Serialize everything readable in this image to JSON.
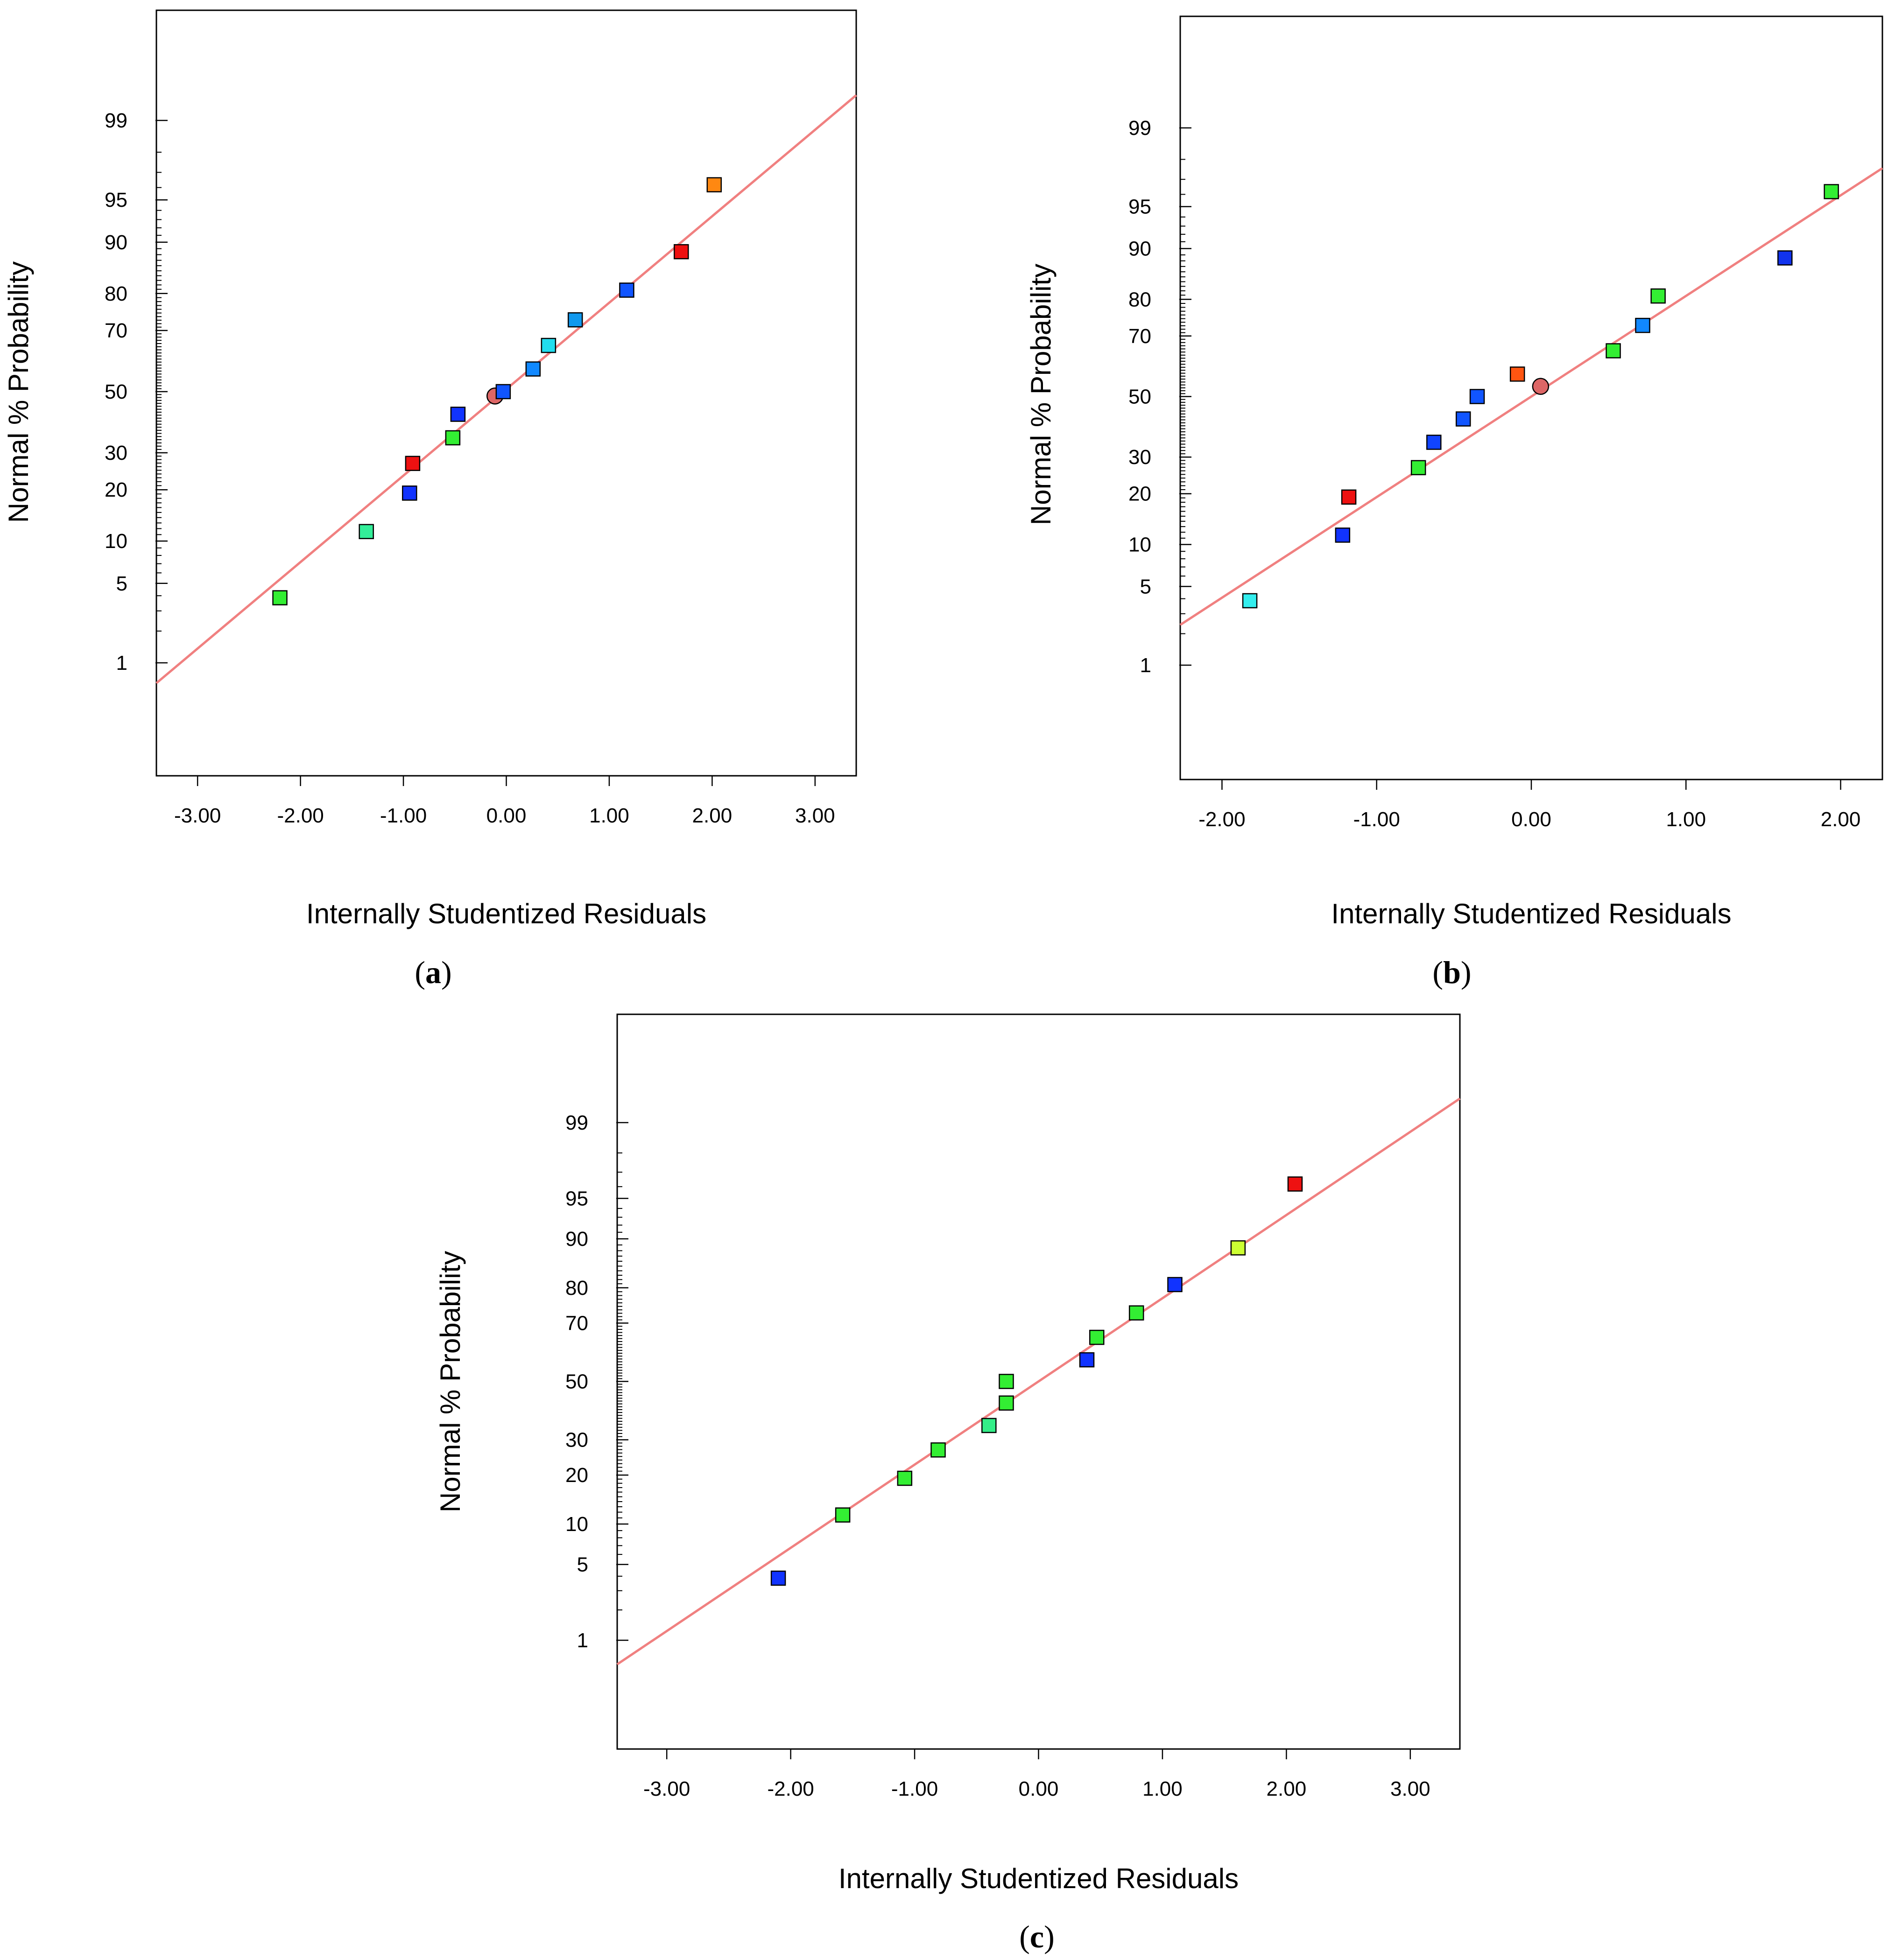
{
  "chart_data": [
    {
      "type": "scatter",
      "panel": "a",
      "caption": "a",
      "xlabel": "Internally Studentized Residuals",
      "ylabel": "Normal % Probability",
      "xlim": [
        -3.4,
        3.4
      ],
      "x_ticks": [
        -3,
        -2,
        -1,
        0,
        1,
        2,
        3
      ],
      "x_tick_labels": [
        "-3.00",
        "-2.00",
        "-1.00",
        "0.00",
        "1.00",
        "2.00",
        "3.00"
      ],
      "y_ticks": [
        1,
        5,
        10,
        20,
        30,
        50,
        70,
        80,
        90,
        95,
        99
      ],
      "y_tick_labels": [
        "1",
        "5",
        "10",
        "20",
        "30",
        "50",
        "70",
        "80",
        "90",
        "95",
        "99"
      ],
      "fit_line": {
        "x0": -3.4,
        "y0": 0.62,
        "x1": 3.4,
        "y1": 99.45
      },
      "points": [
        {
          "x": -2.2,
          "y": 3.85,
          "color": "#33ee33",
          "shape": "square"
        },
        {
          "x": -1.36,
          "y": 11.5,
          "color": "#33ee99",
          "shape": "square"
        },
        {
          "x": -0.94,
          "y": 19.2,
          "color": "#1133ff",
          "shape": "square"
        },
        {
          "x": -0.91,
          "y": 26.9,
          "color": "#ee1111",
          "shape": "square"
        },
        {
          "x": -0.52,
          "y": 34.6,
          "color": "#33ee33",
          "shape": "square"
        },
        {
          "x": -0.47,
          "y": 42.3,
          "color": "#1133ff",
          "shape": "square"
        },
        {
          "x": -0.11,
          "y": 48.5,
          "color": "#dd6666",
          "shape": "circle"
        },
        {
          "x": -0.03,
          "y": 50.0,
          "color": "#1155ff",
          "shape": "square"
        },
        {
          "x": 0.26,
          "y": 57.7,
          "color": "#1188ff",
          "shape": "square"
        },
        {
          "x": 0.41,
          "y": 65.4,
          "color": "#22ddee",
          "shape": "square"
        },
        {
          "x": 0.67,
          "y": 73.1,
          "color": "#1199ee",
          "shape": "square"
        },
        {
          "x": 1.17,
          "y": 80.8,
          "color": "#1155ff",
          "shape": "square"
        },
        {
          "x": 1.7,
          "y": 88.5,
          "color": "#ee1111",
          "shape": "square"
        },
        {
          "x": 2.02,
          "y": 96.2,
          "color": "#ff8811",
          "shape": "square"
        }
      ]
    },
    {
      "type": "scatter",
      "panel": "b",
      "caption": "b",
      "xlabel": "Internally Studentized Residuals",
      "ylabel": "Normal % Probability",
      "xlim": [
        -2.27,
        2.27
      ],
      "x_ticks": [
        -2,
        -1,
        0,
        1,
        2
      ],
      "x_tick_labels": [
        "-2.00",
        "-1.00",
        "0.00",
        "1.00",
        "2.00"
      ],
      "y_ticks": [
        1,
        5,
        10,
        20,
        30,
        50,
        70,
        80,
        90,
        95,
        99
      ],
      "y_tick_labels": [
        "1",
        "5",
        "10",
        "20",
        "30",
        "50",
        "70",
        "80",
        "90",
        "95",
        "99"
      ],
      "fit_line": {
        "x0": -2.27,
        "y0": 2.4,
        "x1": 2.27,
        "y1": 97.6
      },
      "points": [
        {
          "x": -1.82,
          "y": 3.85,
          "color": "#33eeee",
          "shape": "square"
        },
        {
          "x": -1.22,
          "y": 11.5,
          "color": "#1133ff",
          "shape": "square"
        },
        {
          "x": -1.18,
          "y": 19.2,
          "color": "#ee1111",
          "shape": "square"
        },
        {
          "x": -0.73,
          "y": 26.9,
          "color": "#33ee33",
          "shape": "square"
        },
        {
          "x": -0.63,
          "y": 34.6,
          "color": "#1144ff",
          "shape": "square"
        },
        {
          "x": -0.44,
          "y": 42.3,
          "color": "#1155ff",
          "shape": "square"
        },
        {
          "x": -0.35,
          "y": 50.0,
          "color": "#1155ff",
          "shape": "square"
        },
        {
          "x": -0.09,
          "y": 57.7,
          "color": "#ff5511",
          "shape": "square"
        },
        {
          "x": 0.06,
          "y": 53.5,
          "color": "#dd6666",
          "shape": "circle"
        },
        {
          "x": 0.53,
          "y": 65.4,
          "color": "#33ee33",
          "shape": "square"
        },
        {
          "x": 0.72,
          "y": 73.1,
          "color": "#1188ff",
          "shape": "square"
        },
        {
          "x": 0.82,
          "y": 80.8,
          "color": "#33ee33",
          "shape": "square"
        },
        {
          "x": 1.64,
          "y": 88.5,
          "color": "#1133ee",
          "shape": "square"
        },
        {
          "x": 1.94,
          "y": 96.2,
          "color": "#33ee33",
          "shape": "square"
        }
      ]
    },
    {
      "type": "scatter",
      "panel": "c",
      "caption": "c",
      "xlabel": "Internally Studentized Residuals",
      "ylabel": "Normal % Probability",
      "xlim": [
        -3.4,
        3.4
      ],
      "x_ticks": [
        -3,
        -2,
        -1,
        0,
        1,
        2,
        3
      ],
      "x_tick_labels": [
        "-3.00",
        "-2.00",
        "-1.00",
        "0.00",
        "1.00",
        "2.00",
        "3.00"
      ],
      "y_ticks": [
        1,
        5,
        10,
        20,
        30,
        50,
        70,
        80,
        90,
        95,
        99
      ],
      "y_tick_labels": [
        "1",
        "5",
        "10",
        "20",
        "30",
        "50",
        "70",
        "80",
        "90",
        "95",
        "99"
      ],
      "fit_line": {
        "x0": -3.4,
        "y0": 0.55,
        "x1": 3.4,
        "y1": 99.45
      },
      "points": [
        {
          "x": -2.1,
          "y": 3.85,
          "color": "#1133ff",
          "shape": "square"
        },
        {
          "x": -1.58,
          "y": 11.5,
          "color": "#33ee33",
          "shape": "square"
        },
        {
          "x": -1.08,
          "y": 19.2,
          "color": "#33ee33",
          "shape": "square"
        },
        {
          "x": -0.81,
          "y": 26.9,
          "color": "#33ee33",
          "shape": "square"
        },
        {
          "x": -0.4,
          "y": 34.6,
          "color": "#33ee88",
          "shape": "square"
        },
        {
          "x": -0.26,
          "y": 42.3,
          "color": "#33ee33",
          "shape": "square"
        },
        {
          "x": -0.26,
          "y": 50.0,
          "color": "#33ee33",
          "shape": "square"
        },
        {
          "x": 0.39,
          "y": 57.7,
          "color": "#1133ff",
          "shape": "square"
        },
        {
          "x": 0.47,
          "y": 65.4,
          "color": "#33ee33",
          "shape": "square"
        },
        {
          "x": 0.79,
          "y": 73.1,
          "color": "#33ee33",
          "shape": "square"
        },
        {
          "x": 1.1,
          "y": 80.8,
          "color": "#1133ff",
          "shape": "square"
        },
        {
          "x": 1.61,
          "y": 88.5,
          "color": "#ccff33",
          "shape": "square"
        },
        {
          "x": 2.07,
          "y": 96.2,
          "color": "#ee1111",
          "shape": "square"
        }
      ]
    }
  ],
  "style": {
    "fit_line_color": "#f08080",
    "axis_color": "#000000",
    "marker_outline": "#000000"
  }
}
